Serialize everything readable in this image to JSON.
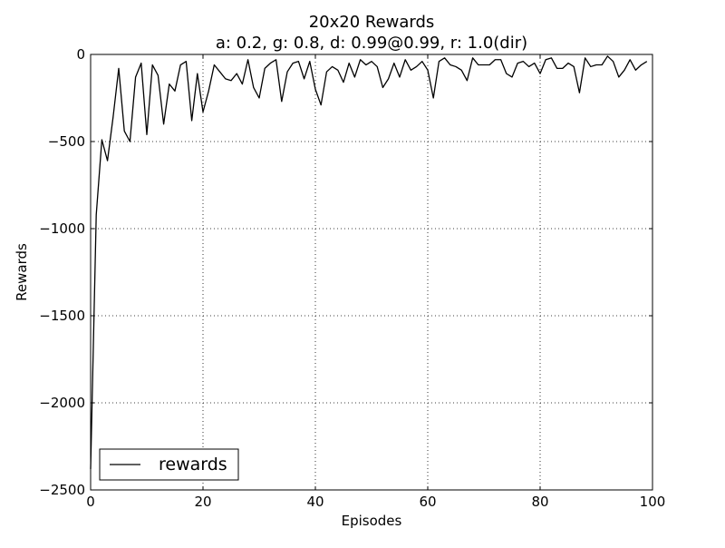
{
  "chart_data": {
    "type": "line",
    "title": "20x20 Rewards",
    "subtitle": "a: 0.2, g: 0.8, d: 0.99@0.99, r: 1.0(dir)",
    "xlabel": "Episodes",
    "ylabel": "Rewards",
    "xlim": [
      0,
      100
    ],
    "ylim": [
      -2500,
      0
    ],
    "xticks": [
      0,
      20,
      40,
      60,
      80,
      100
    ],
    "yticks": [
      0,
      -500,
      -1000,
      -1500,
      -2000,
      -2500
    ],
    "xtick_labels": [
      "0",
      "20",
      "40",
      "60",
      "80",
      "100"
    ],
    "ytick_labels": [
      "0",
      "−500",
      "−1000",
      "−1500",
      "−2000",
      "−2500"
    ],
    "grid": true,
    "legend_position": "lower-left",
    "series": [
      {
        "name": "rewards",
        "color": "#000000",
        "x": [
          0,
          1,
          2,
          3,
          4,
          5,
          6,
          7,
          8,
          9,
          10,
          11,
          12,
          13,
          14,
          15,
          16,
          17,
          18,
          19,
          20,
          21,
          22,
          23,
          24,
          25,
          26,
          27,
          28,
          29,
          30,
          31,
          32,
          33,
          34,
          35,
          36,
          37,
          38,
          39,
          40,
          41,
          42,
          43,
          44,
          45,
          46,
          47,
          48,
          49,
          50,
          51,
          52,
          53,
          54,
          55,
          56,
          57,
          58,
          59,
          60,
          61,
          62,
          63,
          64,
          65,
          66,
          67,
          68,
          69,
          70,
          71,
          72,
          73,
          74,
          75,
          76,
          77,
          78,
          79,
          80,
          81,
          82,
          83,
          84,
          85,
          86,
          87,
          88,
          89,
          90,
          91,
          92,
          93,
          94,
          95,
          96,
          97,
          98,
          99
        ],
        "values": [
          -2380,
          -920,
          -490,
          -610,
          -360,
          -80,
          -440,
          -500,
          -130,
          -50,
          -460,
          -60,
          -120,
          -400,
          -170,
          -210,
          -60,
          -40,
          -380,
          -110,
          -330,
          -210,
          -60,
          -100,
          -140,
          -150,
          -110,
          -170,
          -30,
          -190,
          -250,
          -80,
          -50,
          -30,
          -270,
          -100,
          -50,
          -40,
          -140,
          -40,
          -200,
          -290,
          -100,
          -70,
          -90,
          -160,
          -50,
          -130,
          -30,
          -60,
          -40,
          -70,
          -190,
          -140,
          -50,
          -130,
          -30,
          -90,
          -70,
          -40,
          -90,
          -250,
          -40,
          -20,
          -60,
          -70,
          -90,
          -150,
          -20,
          -60,
          -60,
          -60,
          -30,
          -30,
          -110,
          -130,
          -50,
          -40,
          -70,
          -50,
          -110,
          -30,
          -20,
          -80,
          -80,
          -50,
          -70,
          -220,
          -20,
          -70,
          -60,
          -60,
          -10,
          -40,
          -130,
          -90,
          -30,
          -90,
          -60,
          -40
        ]
      }
    ]
  }
}
